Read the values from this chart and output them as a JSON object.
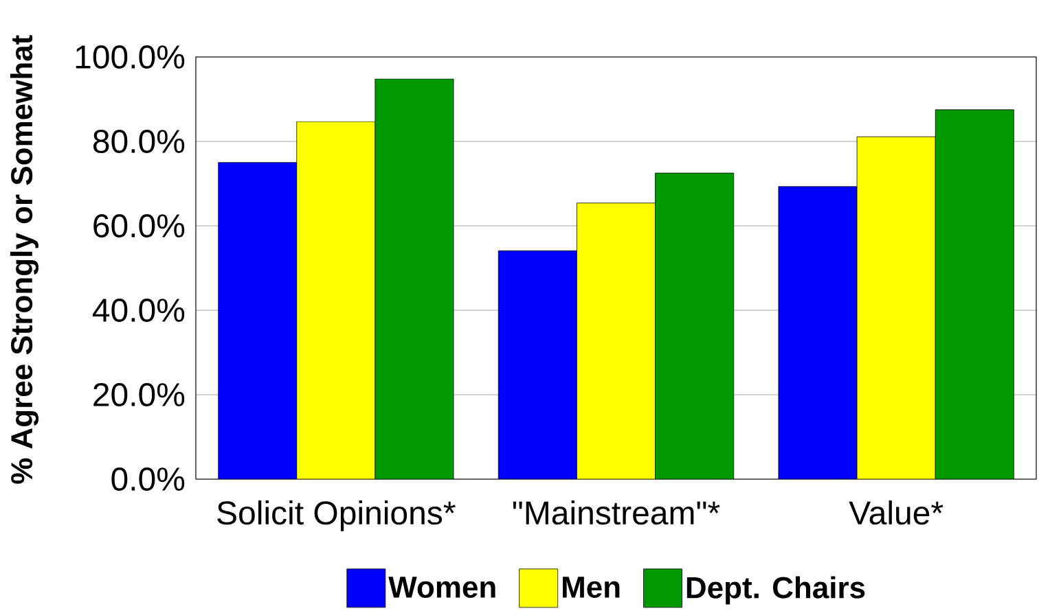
{
  "chart_data": {
    "type": "bar",
    "ylabel": "% Agree Strongly or Somewhat",
    "categories": [
      "Solicit Opinions*",
      "\"Mainstream\"*",
      "Value*"
    ],
    "series": [
      {
        "name": "Women",
        "color": "#0000ff",
        "values": [
          75.0,
          54.1,
          69.3
        ]
      },
      {
        "name": "Men",
        "color": "#ffff00",
        "values": [
          84.7,
          65.4,
          81.1
        ]
      },
      {
        "name": "Dept. Chairs",
        "color": "#009900",
        "values": [
          94.8,
          72.5,
          87.5
        ]
      }
    ],
    "ylim": [
      0,
      100
    ],
    "yticks": [
      {
        "value": 0,
        "label": "0.0%"
      },
      {
        "value": 20,
        "label": "20.0%"
      },
      {
        "value": 40,
        "label": "40.0%"
      },
      {
        "value": 60,
        "label": "60.0%"
      },
      {
        "value": 80,
        "label": "80.0%"
      },
      {
        "value": 100,
        "label": "100.0%"
      }
    ],
    "grid": "y",
    "legend": "bottom"
  }
}
